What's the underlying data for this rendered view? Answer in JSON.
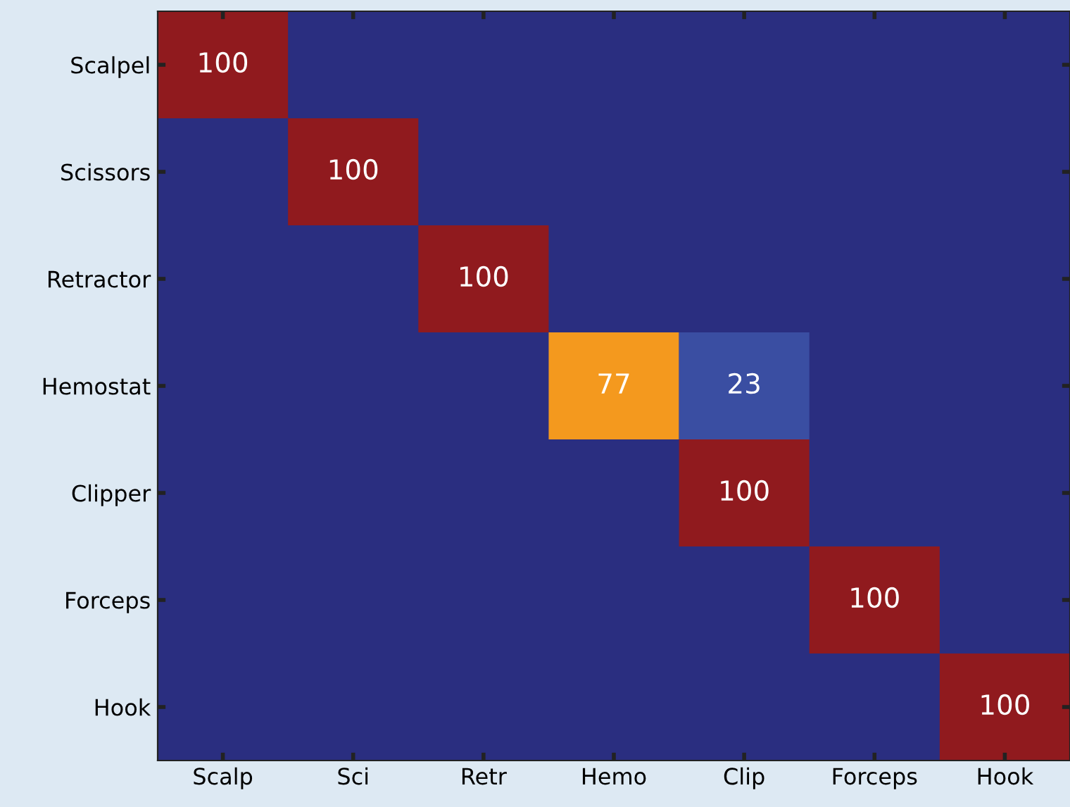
{
  "chart_data": {
    "type": "heatmap",
    "categories": [
      "Scalp",
      "Sci",
      "Retr",
      "Hemo",
      "Clip",
      "Forceps",
      "Hook"
    ],
    "y_categories": [
      "Scalpel",
      "Scissors",
      "Retractor",
      "Hemostat",
      "Clipper",
      "Forceps",
      "Hook"
    ],
    "cells": [
      [
        100,
        null,
        null,
        null,
        null,
        null,
        null
      ],
      [
        null,
        100,
        null,
        null,
        null,
        null,
        null
      ],
      [
        null,
        null,
        100,
        null,
        null,
        null,
        null
      ],
      [
        null,
        null,
        null,
        77,
        23,
        null,
        null
      ],
      [
        null,
        null,
        null,
        null,
        100,
        null,
        null
      ],
      [
        null,
        null,
        null,
        null,
        null,
        100,
        null
      ],
      [
        null,
        null,
        null,
        null,
        null,
        null,
        100
      ]
    ],
    "cell_labels": [
      [
        "100",
        null,
        null,
        null,
        null,
        null,
        null
      ],
      [
        null,
        "100",
        null,
        null,
        null,
        null,
        null
      ],
      [
        null,
        null,
        "100",
        null,
        null,
        null,
        null
      ],
      [
        null,
        null,
        null,
        "77",
        "23",
        null,
        null
      ],
      [
        null,
        null,
        null,
        null,
        "100",
        null,
        null
      ],
      [
        null,
        null,
        null,
        null,
        null,
        "100",
        null
      ],
      [
        null,
        null,
        null,
        null,
        null,
        null,
        "100"
      ]
    ]
  }
}
